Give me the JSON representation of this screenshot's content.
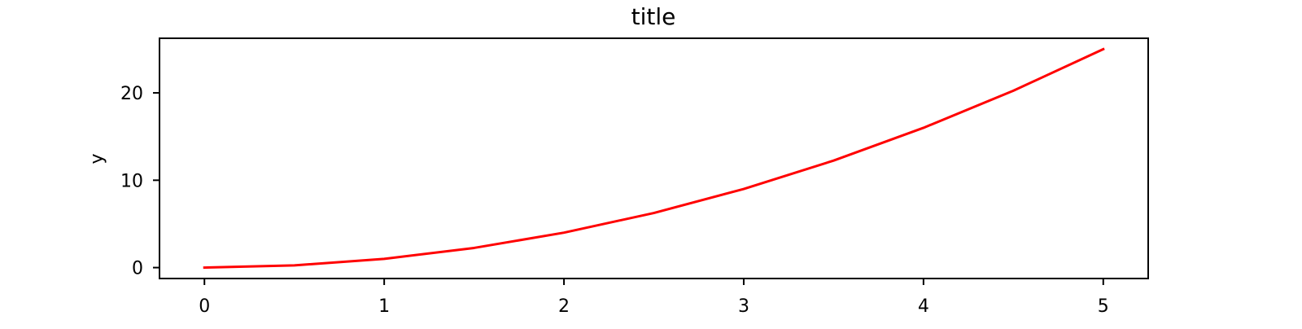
{
  "chart_data": {
    "type": "line",
    "title": "title",
    "xlabel": "",
    "ylabel": "y",
    "xlim": [
      -0.25,
      5.25
    ],
    "ylim": [
      -1.25,
      26.25
    ],
    "xticks": [
      0,
      1,
      2,
      3,
      4,
      5
    ],
    "yticks": [
      0,
      10,
      20
    ],
    "grid": false,
    "series": [
      {
        "color": "#ff0000",
        "x": [
          0,
          0.5,
          1,
          1.5,
          2,
          2.5,
          3,
          3.5,
          4,
          4.5,
          5
        ],
        "y": [
          0,
          0.25,
          1,
          2.25,
          4,
          6.25,
          9,
          12.25,
          16,
          20.25,
          25
        ]
      }
    ]
  }
}
